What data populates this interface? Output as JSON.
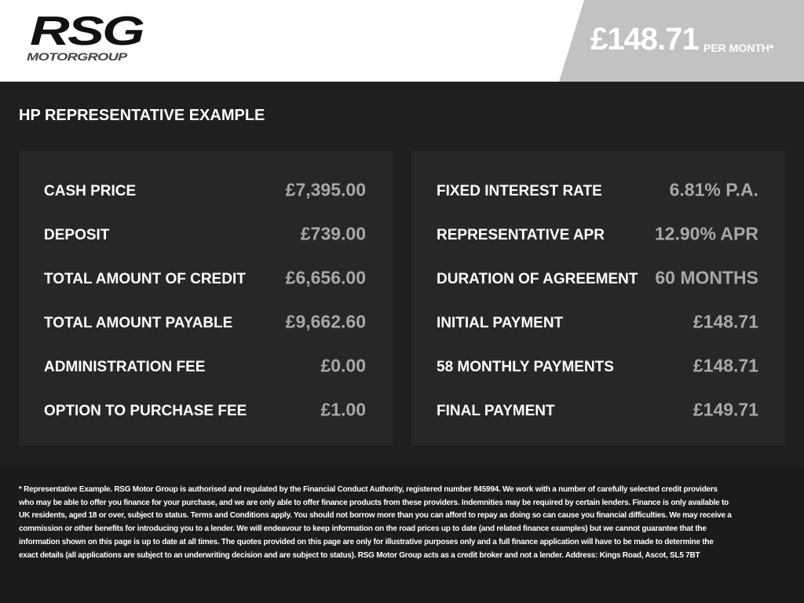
{
  "header": {
    "logo": {
      "main": "RSG",
      "sub": "MOTORGROUP"
    },
    "price": "£148.71",
    "price_suffix": "PER MONTH*"
  },
  "section_title": "HP REPRESENTATIVE EXAMPLE",
  "panels": [
    {
      "rows": [
        {
          "label": "CASH PRICE",
          "value": "£7,395.00"
        },
        {
          "label": "DEPOSIT",
          "value": "£739.00"
        },
        {
          "label": "TOTAL AMOUNT OF CREDIT",
          "value": "£6,656.00"
        },
        {
          "label": "TOTAL AMOUNT PAYABLE",
          "value": "£9,662.60"
        },
        {
          "label": "ADMINISTRATION FEE",
          "value": "£0.00"
        },
        {
          "label": "OPTION TO PURCHASE FEE",
          "value": "£1.00"
        }
      ]
    },
    {
      "rows": [
        {
          "label": "FIXED INTEREST RATE",
          "value": "6.81% P.A."
        },
        {
          "label": "REPRESENTATIVE APR",
          "value": "12.90% APR"
        },
        {
          "label": "DURATION OF AGREEMENT",
          "value": "60 MONTHS"
        },
        {
          "label": "INITIAL PAYMENT",
          "value": "£148.71"
        },
        {
          "label": "58 MONTHLY PAYMENTS",
          "value": "£148.71"
        },
        {
          "label": "FINAL PAYMENT",
          "value": "£149.71"
        }
      ]
    }
  ],
  "disclaimer": "* Representative Example. RSG Motor Group is authorised and regulated by the Financial Conduct Authority, registered number 845994. We work with a number of carefully selected credit providers who may be able to offer you finance for your purchase, and we are only able to offer finance products from these providers. Indemnities may be required by certain lenders. Finance is only available to UK residents, aged 18 or over, subject to status. Terms and Conditions apply. You should not borrow more than you can afford to repay as doing so can cause you financial difficulties. We may receive a commission or other benefits for introducing you to a lender. We will endeavour to keep information on the road prices up to date (and related finance examples) but we cannot guarantee that the information shown on this page is up to date at all times. The quotes provided on this page are only for illustrative purposes only and a full finance application will have to be made to determine the exact details (all applications are subject to an underwriting decision and are subject to status). RSG Motor Group acts as a credit broker and not a lender. Address: Kings Road, Ascot, SL5 7BT"
}
